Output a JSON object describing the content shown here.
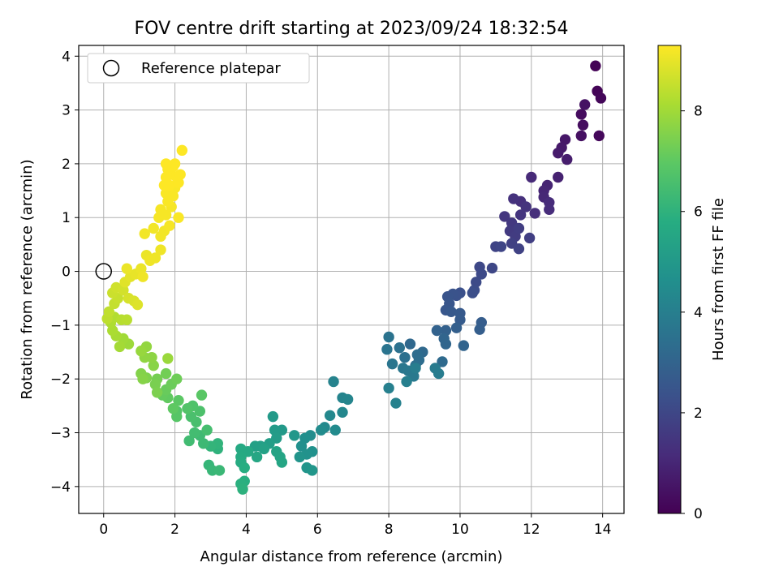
{
  "chart_data": {
    "type": "scatter",
    "title": "FOV centre drift starting at 2023/09/24 18:32:54",
    "xlabel": "Angular distance from reference (arcmin)",
    "ylabel": "Rotation from reference (arcmin)",
    "xlim": [
      -0.7,
      14.6
    ],
    "ylim": [
      -4.5,
      4.2
    ],
    "xticks": [
      0,
      2,
      4,
      6,
      8,
      10,
      12,
      14
    ],
    "yticks": [
      -4,
      -3,
      -2,
      -1,
      0,
      1,
      2,
      3,
      4
    ],
    "grid": true,
    "legend": {
      "position": "top-left",
      "entries": [
        "Reference platepar"
      ]
    },
    "reference_point": {
      "x": 0,
      "y": 0,
      "label": "Reference platepar"
    },
    "colorbar": {
      "label": "Hours from first FF file",
      "colormap": "viridis",
      "range": [
        0,
        9.3
      ],
      "ticks": [
        0,
        2,
        4,
        6,
        8
      ]
    },
    "color_variable": "Hours from first FF file",
    "points": [
      {
        "x": 13.8,
        "y": 3.82,
        "c": 0.05
      },
      {
        "x": 13.85,
        "y": 3.35,
        "c": 0.1
      },
      {
        "x": 13.95,
        "y": 3.22,
        "c": 0.15
      },
      {
        "x": 13.9,
        "y": 2.52,
        "c": 0.2
      },
      {
        "x": 13.4,
        "y": 2.92,
        "c": 0.3
      },
      {
        "x": 13.45,
        "y": 2.72,
        "c": 0.35
      },
      {
        "x": 13.4,
        "y": 2.52,
        "c": 0.4
      },
      {
        "x": 13.5,
        "y": 3.1,
        "c": 0.45
      },
      {
        "x": 12.95,
        "y": 2.45,
        "c": 0.6
      },
      {
        "x": 12.85,
        "y": 2.3,
        "c": 0.65
      },
      {
        "x": 12.75,
        "y": 2.2,
        "c": 0.7
      },
      {
        "x": 13.0,
        "y": 2.08,
        "c": 0.75
      },
      {
        "x": 12.75,
        "y": 1.75,
        "c": 0.9
      },
      {
        "x": 12.45,
        "y": 1.6,
        "c": 0.95
      },
      {
        "x": 12.35,
        "y": 1.5,
        "c": 1.0
      },
      {
        "x": 12.35,
        "y": 1.38,
        "c": 1.05
      },
      {
        "x": 12.0,
        "y": 1.75,
        "c": 1.1
      },
      {
        "x": 12.5,
        "y": 1.28,
        "c": 1.15
      },
      {
        "x": 12.5,
        "y": 1.15,
        "c": 1.2
      },
      {
        "x": 12.1,
        "y": 1.08,
        "c": 1.25
      },
      {
        "x": 11.7,
        "y": 1.3,
        "c": 1.3
      },
      {
        "x": 11.5,
        "y": 1.35,
        "c": 1.35
      },
      {
        "x": 11.85,
        "y": 1.2,
        "c": 1.4
      },
      {
        "x": 11.7,
        "y": 1.05,
        "c": 1.45
      },
      {
        "x": 11.25,
        "y": 1.02,
        "c": 1.5
      },
      {
        "x": 11.45,
        "y": 0.9,
        "c": 1.55
      },
      {
        "x": 11.4,
        "y": 0.75,
        "c": 1.6
      },
      {
        "x": 11.55,
        "y": 0.65,
        "c": 1.65
      },
      {
        "x": 11.65,
        "y": 0.8,
        "c": 1.7
      },
      {
        "x": 11.95,
        "y": 0.62,
        "c": 1.75
      },
      {
        "x": 11.45,
        "y": 0.52,
        "c": 1.8
      },
      {
        "x": 11.65,
        "y": 0.42,
        "c": 1.85
      },
      {
        "x": 11.0,
        "y": 0.46,
        "c": 1.9
      },
      {
        "x": 11.15,
        "y": 0.46,
        "c": 1.95
      },
      {
        "x": 10.9,
        "y": 0.06,
        "c": 2.0
      },
      {
        "x": 10.55,
        "y": 0.08,
        "c": 2.05
      },
      {
        "x": 10.6,
        "y": -0.05,
        "c": 2.1
      },
      {
        "x": 10.45,
        "y": -0.2,
        "c": 2.15
      },
      {
        "x": 10.4,
        "y": -0.35,
        "c": 2.2
      },
      {
        "x": 10.35,
        "y": -0.4,
        "c": 2.25
      },
      {
        "x": 10.0,
        "y": -0.4,
        "c": 2.3
      },
      {
        "x": 9.9,
        "y": -0.45,
        "c": 2.35
      },
      {
        "x": 9.8,
        "y": -0.42,
        "c": 2.4
      },
      {
        "x": 9.65,
        "y": -0.47,
        "c": 2.45
      },
      {
        "x": 9.7,
        "y": -0.6,
        "c": 2.5
      },
      {
        "x": 9.6,
        "y": -0.72,
        "c": 2.55
      },
      {
        "x": 9.75,
        "y": -0.75,
        "c": 2.6
      },
      {
        "x": 10.0,
        "y": -0.78,
        "c": 2.65
      },
      {
        "x": 10.0,
        "y": -0.9,
        "c": 2.7
      },
      {
        "x": 10.6,
        "y": -0.95,
        "c": 2.75
      },
      {
        "x": 10.55,
        "y": -1.08,
        "c": 2.8
      },
      {
        "x": 9.9,
        "y": -1.05,
        "c": 2.85
      },
      {
        "x": 9.6,
        "y": -1.1,
        "c": 2.9
      },
      {
        "x": 9.35,
        "y": -1.1,
        "c": 2.95
      },
      {
        "x": 10.1,
        "y": -1.38,
        "c": 3.0
      },
      {
        "x": 9.55,
        "y": -1.25,
        "c": 3.05
      },
      {
        "x": 9.6,
        "y": -1.35,
        "c": 3.1
      },
      {
        "x": 8.6,
        "y": -1.35,
        "c": 3.15
      },
      {
        "x": 8.95,
        "y": -1.5,
        "c": 3.2
      },
      {
        "x": 9.5,
        "y": -1.68,
        "c": 3.25
      },
      {
        "x": 8.8,
        "y": -1.55,
        "c": 3.3
      },
      {
        "x": 8.85,
        "y": -1.65,
        "c": 3.35
      },
      {
        "x": 8.75,
        "y": -1.75,
        "c": 3.4
      },
      {
        "x": 8.45,
        "y": -1.6,
        "c": 3.45
      },
      {
        "x": 8.3,
        "y": -1.42,
        "c": 3.5
      },
      {
        "x": 8.0,
        "y": -1.22,
        "c": 3.55
      },
      {
        "x": 7.95,
        "y": -1.45,
        "c": 3.6
      },
      {
        "x": 8.1,
        "y": -1.72,
        "c": 3.65
      },
      {
        "x": 8.4,
        "y": -1.8,
        "c": 3.7
      },
      {
        "x": 8.55,
        "y": -1.85,
        "c": 3.75
      },
      {
        "x": 8.7,
        "y": -1.95,
        "c": 3.8
      },
      {
        "x": 9.3,
        "y": -1.8,
        "c": 3.85
      },
      {
        "x": 9.4,
        "y": -1.9,
        "c": 3.9
      },
      {
        "x": 8.75,
        "y": -1.8,
        "c": 3.95
      },
      {
        "x": 8.5,
        "y": -2.05,
        "c": 4.0
      },
      {
        "x": 8.0,
        "y": -2.17,
        "c": 4.05
      },
      {
        "x": 8.2,
        "y": -2.45,
        "c": 4.1
      },
      {
        "x": 6.45,
        "y": -2.05,
        "c": 4.15
      },
      {
        "x": 6.7,
        "y": -2.35,
        "c": 4.2
      },
      {
        "x": 6.85,
        "y": -2.38,
        "c": 4.25
      },
      {
        "x": 6.7,
        "y": -2.62,
        "c": 4.3
      },
      {
        "x": 6.35,
        "y": -2.68,
        "c": 4.35
      },
      {
        "x": 6.2,
        "y": -2.9,
        "c": 4.4
      },
      {
        "x": 6.5,
        "y": -2.95,
        "c": 4.45
      },
      {
        "x": 6.1,
        "y": -2.95,
        "c": 4.5
      },
      {
        "x": 5.8,
        "y": -3.05,
        "c": 4.55
      },
      {
        "x": 5.65,
        "y": -3.1,
        "c": 4.6
      },
      {
        "x": 5.55,
        "y": -3.25,
        "c": 4.65
      },
      {
        "x": 5.85,
        "y": -3.35,
        "c": 4.7
      },
      {
        "x": 5.7,
        "y": -3.4,
        "c": 4.75
      },
      {
        "x": 5.5,
        "y": -3.45,
        "c": 4.8
      },
      {
        "x": 5.7,
        "y": -3.65,
        "c": 4.85
      },
      {
        "x": 5.85,
        "y": -3.7,
        "c": 4.9
      },
      {
        "x": 5.35,
        "y": -3.05,
        "c": 4.95
      },
      {
        "x": 5.0,
        "y": -2.95,
        "c": 5.0
      },
      {
        "x": 4.75,
        "y": -2.7,
        "c": 5.05
      },
      {
        "x": 4.8,
        "y": -2.95,
        "c": 5.1
      },
      {
        "x": 4.85,
        "y": -3.1,
        "c": 5.15
      },
      {
        "x": 4.65,
        "y": -3.2,
        "c": 5.2
      },
      {
        "x": 4.4,
        "y": -3.25,
        "c": 5.25
      },
      {
        "x": 4.25,
        "y": -3.25,
        "c": 5.3
      },
      {
        "x": 4.5,
        "y": -3.3,
        "c": 5.35
      },
      {
        "x": 4.85,
        "y": -3.35,
        "c": 5.4
      },
      {
        "x": 4.95,
        "y": -3.45,
        "c": 5.45
      },
      {
        "x": 5.0,
        "y": -3.55,
        "c": 5.5
      },
      {
        "x": 4.3,
        "y": -3.45,
        "c": 5.55
      },
      {
        "x": 4.05,
        "y": -3.35,
        "c": 5.6
      },
      {
        "x": 3.85,
        "y": -3.3,
        "c": 5.65
      },
      {
        "x": 3.85,
        "y": -3.45,
        "c": 5.7
      },
      {
        "x": 3.85,
        "y": -3.55,
        "c": 5.75
      },
      {
        "x": 3.95,
        "y": -3.65,
        "c": 5.8
      },
      {
        "x": 3.95,
        "y": -3.9,
        "c": 5.85
      },
      {
        "x": 3.85,
        "y": -3.95,
        "c": 5.9
      },
      {
        "x": 3.9,
        "y": -4.05,
        "c": 5.95
      },
      {
        "x": 3.2,
        "y": -3.3,
        "c": 6.0
      },
      {
        "x": 3.2,
        "y": -3.2,
        "c": 6.05
      },
      {
        "x": 3.0,
        "y": -3.25,
        "c": 6.1
      },
      {
        "x": 2.95,
        "y": -3.6,
        "c": 6.15
      },
      {
        "x": 3.05,
        "y": -3.7,
        "c": 6.2
      },
      {
        "x": 3.25,
        "y": -3.7,
        "c": 6.25
      },
      {
        "x": 2.8,
        "y": -3.2,
        "c": 6.3
      },
      {
        "x": 2.7,
        "y": -3.05,
        "c": 6.35
      },
      {
        "x": 2.4,
        "y": -3.15,
        "c": 6.4
      },
      {
        "x": 2.55,
        "y": -3.0,
        "c": 6.45
      },
      {
        "x": 2.9,
        "y": -2.95,
        "c": 6.5
      },
      {
        "x": 2.6,
        "y": -2.8,
        "c": 6.55
      },
      {
        "x": 2.45,
        "y": -2.7,
        "c": 6.6
      },
      {
        "x": 2.7,
        "y": -2.6,
        "c": 6.65
      },
      {
        "x": 2.5,
        "y": -2.5,
        "c": 6.7
      },
      {
        "x": 2.35,
        "y": -2.55,
        "c": 6.75
      },
      {
        "x": 2.05,
        "y": -2.6,
        "c": 6.8
      },
      {
        "x": 2.05,
        "y": -2.7,
        "c": 6.85
      },
      {
        "x": 2.75,
        "y": -2.3,
        "c": 6.9
      },
      {
        "x": 2.1,
        "y": -2.4,
        "c": 6.95
      },
      {
        "x": 1.95,
        "y": -2.55,
        "c": 7.0
      },
      {
        "x": 1.8,
        "y": -2.35,
        "c": 7.05
      },
      {
        "x": 1.65,
        "y": -2.3,
        "c": 7.1
      },
      {
        "x": 1.75,
        "y": -2.2,
        "c": 7.15
      },
      {
        "x": 1.9,
        "y": -2.1,
        "c": 7.2
      },
      {
        "x": 2.05,
        "y": -2.0,
        "c": 7.25
      },
      {
        "x": 1.75,
        "y": -1.9,
        "c": 7.3
      },
      {
        "x": 1.5,
        "y": -2.0,
        "c": 7.35
      },
      {
        "x": 1.45,
        "y": -2.1,
        "c": 7.4
      },
      {
        "x": 1.5,
        "y": -2.25,
        "c": 7.45
      },
      {
        "x": 1.2,
        "y": -1.98,
        "c": 7.5
      },
      {
        "x": 1.05,
        "y": -1.9,
        "c": 7.55
      },
      {
        "x": 1.1,
        "y": -2.0,
        "c": 7.6
      },
      {
        "x": 1.4,
        "y": -1.75,
        "c": 7.65
      },
      {
        "x": 1.35,
        "y": -1.6,
        "c": 7.7
      },
      {
        "x": 1.15,
        "y": -1.6,
        "c": 7.75
      },
      {
        "x": 1.2,
        "y": -1.4,
        "c": 7.8
      },
      {
        "x": 1.05,
        "y": -1.48,
        "c": 7.85
      },
      {
        "x": 1.8,
        "y": -1.62,
        "c": 7.9
      },
      {
        "x": 0.7,
        "y": -1.35,
        "c": 7.95
      },
      {
        "x": 0.55,
        "y": -1.25,
        "c": 8.0
      },
      {
        "x": 0.45,
        "y": -1.4,
        "c": 8.05
      },
      {
        "x": 0.35,
        "y": -1.2,
        "c": 8.1
      },
      {
        "x": 0.25,
        "y": -1.1,
        "c": 8.15
      },
      {
        "x": 0.2,
        "y": -0.95,
        "c": 8.2
      },
      {
        "x": 0.3,
        "y": -0.85,
        "c": 8.25
      },
      {
        "x": 0.5,
        "y": -0.9,
        "c": 8.3
      },
      {
        "x": 0.65,
        "y": -0.9,
        "c": 8.35
      },
      {
        "x": 0.1,
        "y": -0.88,
        "c": 8.4
      },
      {
        "x": 0.15,
        "y": -0.75,
        "c": 8.45
      },
      {
        "x": 0.3,
        "y": -0.6,
        "c": 8.5
      },
      {
        "x": 0.4,
        "y": -0.5,
        "c": 8.55
      },
      {
        "x": 0.25,
        "y": -0.4,
        "c": 8.6
      },
      {
        "x": 0.35,
        "y": -0.3,
        "c": 8.65
      },
      {
        "x": 0.55,
        "y": -0.35,
        "c": 8.7
      },
      {
        "x": 0.7,
        "y": -0.5,
        "c": 8.75
      },
      {
        "x": 0.85,
        "y": -0.55,
        "c": 8.8
      },
      {
        "x": 0.95,
        "y": -0.62,
        "c": 8.85
      },
      {
        "x": 0.6,
        "y": -0.2,
        "c": 8.9
      },
      {
        "x": 0.75,
        "y": -0.1,
        "c": 8.95
      },
      {
        "x": 0.9,
        "y": -0.05,
        "c": 9.0
      },
      {
        "x": 1.05,
        "y": 0.05,
        "c": 9.05
      },
      {
        "x": 0.65,
        "y": 0.05,
        "c": 9.05
      },
      {
        "x": 1.2,
        "y": 0.3,
        "c": 9.05
      },
      {
        "x": 1.3,
        "y": 0.2,
        "c": 9.1
      },
      {
        "x": 1.45,
        "y": 0.25,
        "c": 9.1
      },
      {
        "x": 1.6,
        "y": 0.4,
        "c": 9.1
      },
      {
        "x": 1.1,
        "y": -0.1,
        "c": 9.1
      },
      {
        "x": 1.15,
        "y": 0.7,
        "c": 9.15
      },
      {
        "x": 1.4,
        "y": 0.8,
        "c": 9.15
      },
      {
        "x": 1.7,
        "y": 0.75,
        "c": 9.15
      },
      {
        "x": 1.6,
        "y": 0.65,
        "c": 9.15
      },
      {
        "x": 1.85,
        "y": 0.85,
        "c": 9.2
      },
      {
        "x": 1.55,
        "y": 1.0,
        "c": 9.2
      },
      {
        "x": 1.6,
        "y": 1.15,
        "c": 9.2
      },
      {
        "x": 1.75,
        "y": 1.05,
        "c": 9.2
      },
      {
        "x": 1.9,
        "y": 1.2,
        "c": 9.2
      },
      {
        "x": 2.1,
        "y": 1.0,
        "c": 9.25
      },
      {
        "x": 1.8,
        "y": 1.3,
        "c": 9.25
      },
      {
        "x": 1.75,
        "y": 1.45,
        "c": 9.25
      },
      {
        "x": 1.95,
        "y": 1.4,
        "c": 9.25
      },
      {
        "x": 2.0,
        "y": 1.55,
        "c": 9.25
      },
      {
        "x": 1.85,
        "y": 1.6,
        "c": 9.3
      },
      {
        "x": 1.7,
        "y": 1.6,
        "c": 9.3
      },
      {
        "x": 2.1,
        "y": 1.65,
        "c": 9.3
      },
      {
        "x": 1.75,
        "y": 1.75,
        "c": 9.3
      },
      {
        "x": 1.9,
        "y": 1.8,
        "c": 9.3
      },
      {
        "x": 2.05,
        "y": 1.75,
        "c": 9.3
      },
      {
        "x": 2.15,
        "y": 1.8,
        "c": 9.3
      },
      {
        "x": 1.8,
        "y": 1.9,
        "c": 9.3
      },
      {
        "x": 1.95,
        "y": 1.95,
        "c": 9.3
      },
      {
        "x": 2.0,
        "y": 2.0,
        "c": 9.3
      },
      {
        "x": 1.75,
        "y": 2.0,
        "c": 9.3
      },
      {
        "x": 2.2,
        "y": 2.25,
        "c": 9.3
      }
    ]
  }
}
